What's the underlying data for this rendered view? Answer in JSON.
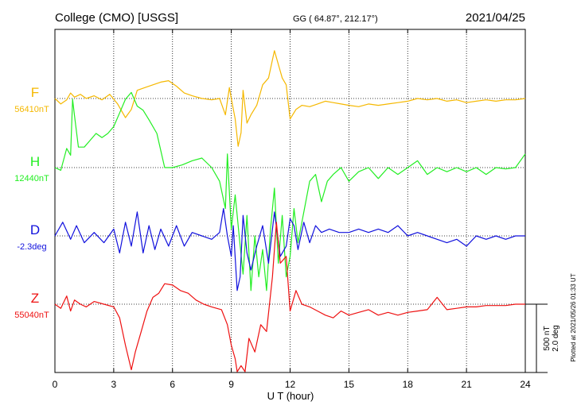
{
  "header": {
    "station": "College (CMO)  [USGS]",
    "coords": "GG ( 64.87°, 212.17°)",
    "date": "2021/04/25"
  },
  "side_note": "Plotted at 2021/05/26 01:33 UT",
  "scale": {
    "nt": "500 nT",
    "deg": "2.0 deg"
  },
  "chart_data": {
    "type": "line",
    "xlabel": "U T (hour)",
    "xlim": [
      0,
      24
    ],
    "xticks": [
      "0",
      "3",
      "6",
      "9",
      "12",
      "15",
      "18",
      "21",
      "24"
    ],
    "grid": true,
    "series": [
      {
        "name": "F",
        "baseline": "56410nT",
        "color": "#f5b800",
        "unit": "nT",
        "x": [
          0,
          0.3,
          0.6,
          0.8,
          1,
          1.3,
          1.6,
          2,
          2.4,
          2.8,
          3.2,
          3.6,
          3.9,
          4.2,
          4.6,
          5,
          5.4,
          5.8,
          6.2,
          6.6,
          7,
          7.5,
          8,
          8.4,
          8.7,
          8.9,
          9,
          9.2,
          9.35,
          9.5,
          9.6,
          9.8,
          10,
          10.3,
          10.6,
          10.9,
          11.2,
          11.4,
          11.6,
          11.8,
          12,
          12.3,
          12.6,
          13,
          13.4,
          13.8,
          14.2,
          14.6,
          15,
          15.5,
          16,
          16.5,
          17,
          17.5,
          18,
          18.5,
          19,
          19.5,
          20,
          20.5,
          21,
          21.5,
          22,
          22.5,
          23,
          23.5,
          24
        ],
        "values": [
          0,
          -40,
          -10,
          40,
          10,
          30,
          0,
          20,
          -10,
          30,
          -40,
          -140,
          -80,
          60,
          80,
          100,
          120,
          130,
          90,
          40,
          20,
          0,
          -10,
          0,
          -120,
          80,
          0,
          -150,
          -350,
          -250,
          60,
          -180,
          -120,
          -50,
          100,
          150,
          350,
          250,
          150,
          100,
          -150,
          -80,
          -50,
          -60,
          -40,
          -20,
          -30,
          -40,
          -50,
          -60,
          -40,
          -50,
          -40,
          -30,
          -20,
          0,
          -10,
          0,
          -20,
          -10,
          -30,
          -20,
          -10,
          -20,
          -10,
          -10,
          0
        ]
      },
      {
        "name": "H",
        "baseline": "12440nT",
        "color": "#22ee22",
        "unit": "nT",
        "x": [
          0,
          0.3,
          0.6,
          0.8,
          0.9,
          1,
          1.2,
          1.5,
          1.8,
          2.1,
          2.4,
          2.7,
          3,
          3.3,
          3.6,
          3.9,
          4.2,
          4.5,
          4.8,
          5.2,
          5.6,
          6,
          6.5,
          7,
          7.5,
          8,
          8.4,
          8.7,
          8.8,
          9,
          9.2,
          9.4,
          9.6,
          9.8,
          10,
          10.2,
          10.4,
          10.6,
          10.8,
          11,
          11.2,
          11.4,
          11.6,
          11.8,
          12,
          12.2,
          12.4,
          12.6,
          12.8,
          13,
          13.3,
          13.6,
          13.9,
          14.2,
          14.6,
          15,
          15.5,
          16,
          16.5,
          17,
          17.5,
          18,
          18.5,
          19,
          19.5,
          20,
          20.5,
          21,
          21.5,
          22,
          22.5,
          23,
          23.5,
          24
        ],
        "values": [
          0,
          -20,
          140,
          90,
          500,
          380,
          150,
          150,
          200,
          250,
          220,
          250,
          300,
          400,
          500,
          550,
          450,
          420,
          350,
          250,
          0,
          0,
          20,
          50,
          70,
          0,
          -100,
          -300,
          100,
          -450,
          -200,
          -500,
          -780,
          -350,
          -900,
          -500,
          -800,
          -600,
          -900,
          -450,
          -150,
          -700,
          -350,
          -800,
          -650,
          -300,
          -550,
          -400,
          -250,
          -100,
          -50,
          -250,
          -100,
          -50,
          0,
          -100,
          -30,
          0,
          -80,
          0,
          -50,
          0,
          50,
          -50,
          0,
          -30,
          0,
          -30,
          0,
          -50,
          0,
          -10,
          0,
          100
        ]
      },
      {
        "name": "D",
        "baseline": "-2.3deg",
        "color": "#1111dd",
        "unit": "deg",
        "x": [
          0,
          0.4,
          0.8,
          1.1,
          1.5,
          2,
          2.5,
          3,
          3.3,
          3.6,
          3.9,
          4.2,
          4.5,
          4.8,
          5.1,
          5.4,
          5.8,
          6.2,
          6.6,
          7,
          7.5,
          8,
          8.4,
          8.6,
          8.8,
          9,
          9.1,
          9.3,
          9.45,
          9.6,
          9.8,
          10,
          10.3,
          10.6,
          10.9,
          11.2,
          11.5,
          11.8,
          12,
          12.2,
          12.4,
          12.7,
          13,
          13.3,
          13.6,
          14,
          14.5,
          15,
          15.5,
          16,
          16.5,
          17,
          17.5,
          18,
          18.5,
          19,
          19.5,
          20,
          20.5,
          21,
          21.5,
          22,
          22.5,
          23,
          23.5,
          24
        ],
        "values": [
          0,
          0.4,
          -0.1,
          0.3,
          -0.2,
          0.1,
          -0.2,
          0.2,
          -0.5,
          0.4,
          -0.3,
          0.7,
          -0.5,
          0.3,
          -0.4,
          0.2,
          -0.3,
          0.3,
          -0.3,
          0.1,
          0.0,
          -0.1,
          0.1,
          0.8,
          0.0,
          -0.6,
          0.3,
          -1.6,
          -1.2,
          0.6,
          -0.5,
          -1.0,
          -0.3,
          0.3,
          -0.8,
          0.7,
          -0.6,
          -0.3,
          0.5,
          0.3,
          -0.4,
          0.4,
          -0.2,
          0.3,
          0.1,
          0.2,
          0.1,
          0.1,
          0.2,
          0.1,
          0.2,
          0.1,
          0.3,
          0.0,
          0.1,
          0.0,
          -0.1,
          -0.2,
          -0.1,
          -0.3,
          0.0,
          -0.1,
          0.0,
          -0.1,
          0.0,
          0.0
        ]
      },
      {
        "name": "Z",
        "baseline": "55040nT",
        "color": "#ee1111",
        "unit": "nT",
        "x": [
          0,
          0.3,
          0.6,
          0.8,
          1,
          1.3,
          1.6,
          2,
          2.5,
          3,
          3.3,
          3.6,
          3.9,
          4.1,
          4.4,
          4.7,
          5,
          5.3,
          5.6,
          6,
          6.4,
          6.8,
          7.2,
          7.6,
          8,
          8.5,
          8.8,
          9,
          9.2,
          9.3,
          9.5,
          9.7,
          9.9,
          10.2,
          10.5,
          10.8,
          11.1,
          11.3,
          11.5,
          11.8,
          12,
          12.3,
          12.6,
          13,
          13.4,
          13.8,
          14.2,
          14.6,
          15,
          15.5,
          16,
          16.5,
          17,
          17.5,
          18,
          18.5,
          19,
          19.5,
          20,
          20.5,
          21,
          21.5,
          22,
          22.5,
          23,
          23.5,
          24
        ],
        "values": [
          0,
          -30,
          60,
          -50,
          30,
          0,
          -20,
          20,
          0,
          -20,
          -100,
          -300,
          -480,
          -350,
          -200,
          -50,
          50,
          80,
          150,
          140,
          100,
          80,
          30,
          0,
          -20,
          -40,
          -150,
          -300,
          -400,
          -720,
          -450,
          -500,
          -250,
          -350,
          -150,
          -200,
          200,
          600,
          300,
          350,
          -50,
          100,
          0,
          -20,
          -50,
          -80,
          -100,
          -50,
          -80,
          -60,
          -40,
          -80,
          -60,
          -80,
          -60,
          -50,
          -40,
          50,
          -40,
          -30,
          -20,
          -20,
          -10,
          -10,
          -10,
          0,
          0
        ]
      }
    ]
  }
}
